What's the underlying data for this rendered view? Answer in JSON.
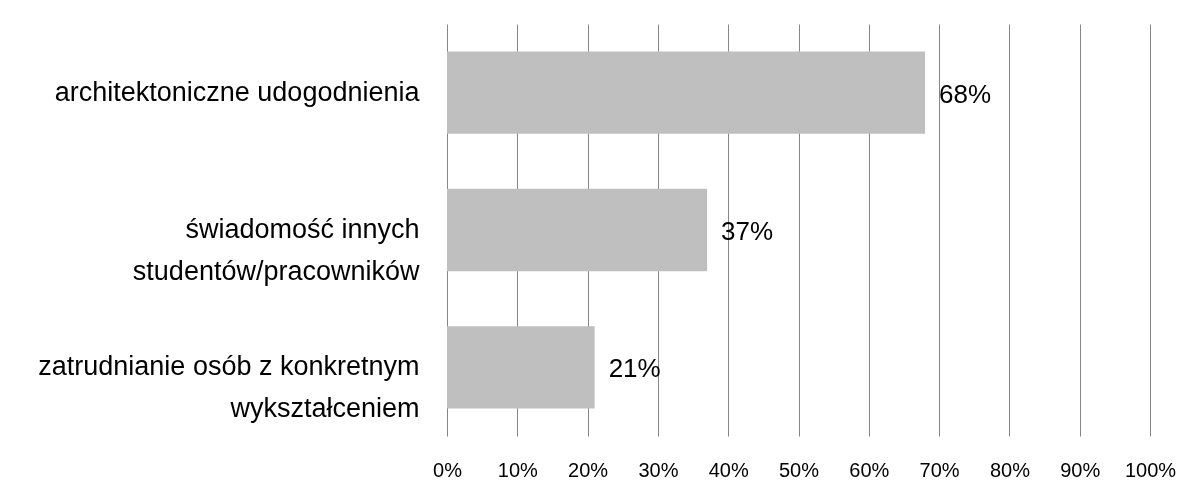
{
  "chart_data": {
    "type": "bar",
    "orientation": "horizontal",
    "categories": [
      "architektoniczne udogodnienia",
      "świadomość innych studentów/pracowników",
      "zatrudnianie osób z konkretnym wykształceniem"
    ],
    "series": [
      {
        "color": "#bfbfbf",
        "values": [
          68,
          37,
          21
        ],
        "value_labels": [
          "68%",
          "37%",
          "21%"
        ]
      }
    ],
    "xlim": [
      0,
      100
    ],
    "xticks": [
      {
        "value": 0,
        "label": "0%"
      },
      {
        "value": 10,
        "label": "10%"
      },
      {
        "value": 20,
        "label": "20%"
      },
      {
        "value": 30,
        "label": "30%"
      },
      {
        "value": 40,
        "label": "40%"
      },
      {
        "value": 50,
        "label": "50%"
      },
      {
        "value": 60,
        "label": "60%"
      },
      {
        "value": 70,
        "label": "70%"
      },
      {
        "value": 80,
        "label": "80%"
      },
      {
        "value": 90,
        "label": "90%"
      },
      {
        "value": 100,
        "label": "100%"
      }
    ],
    "grid": "x"
  }
}
